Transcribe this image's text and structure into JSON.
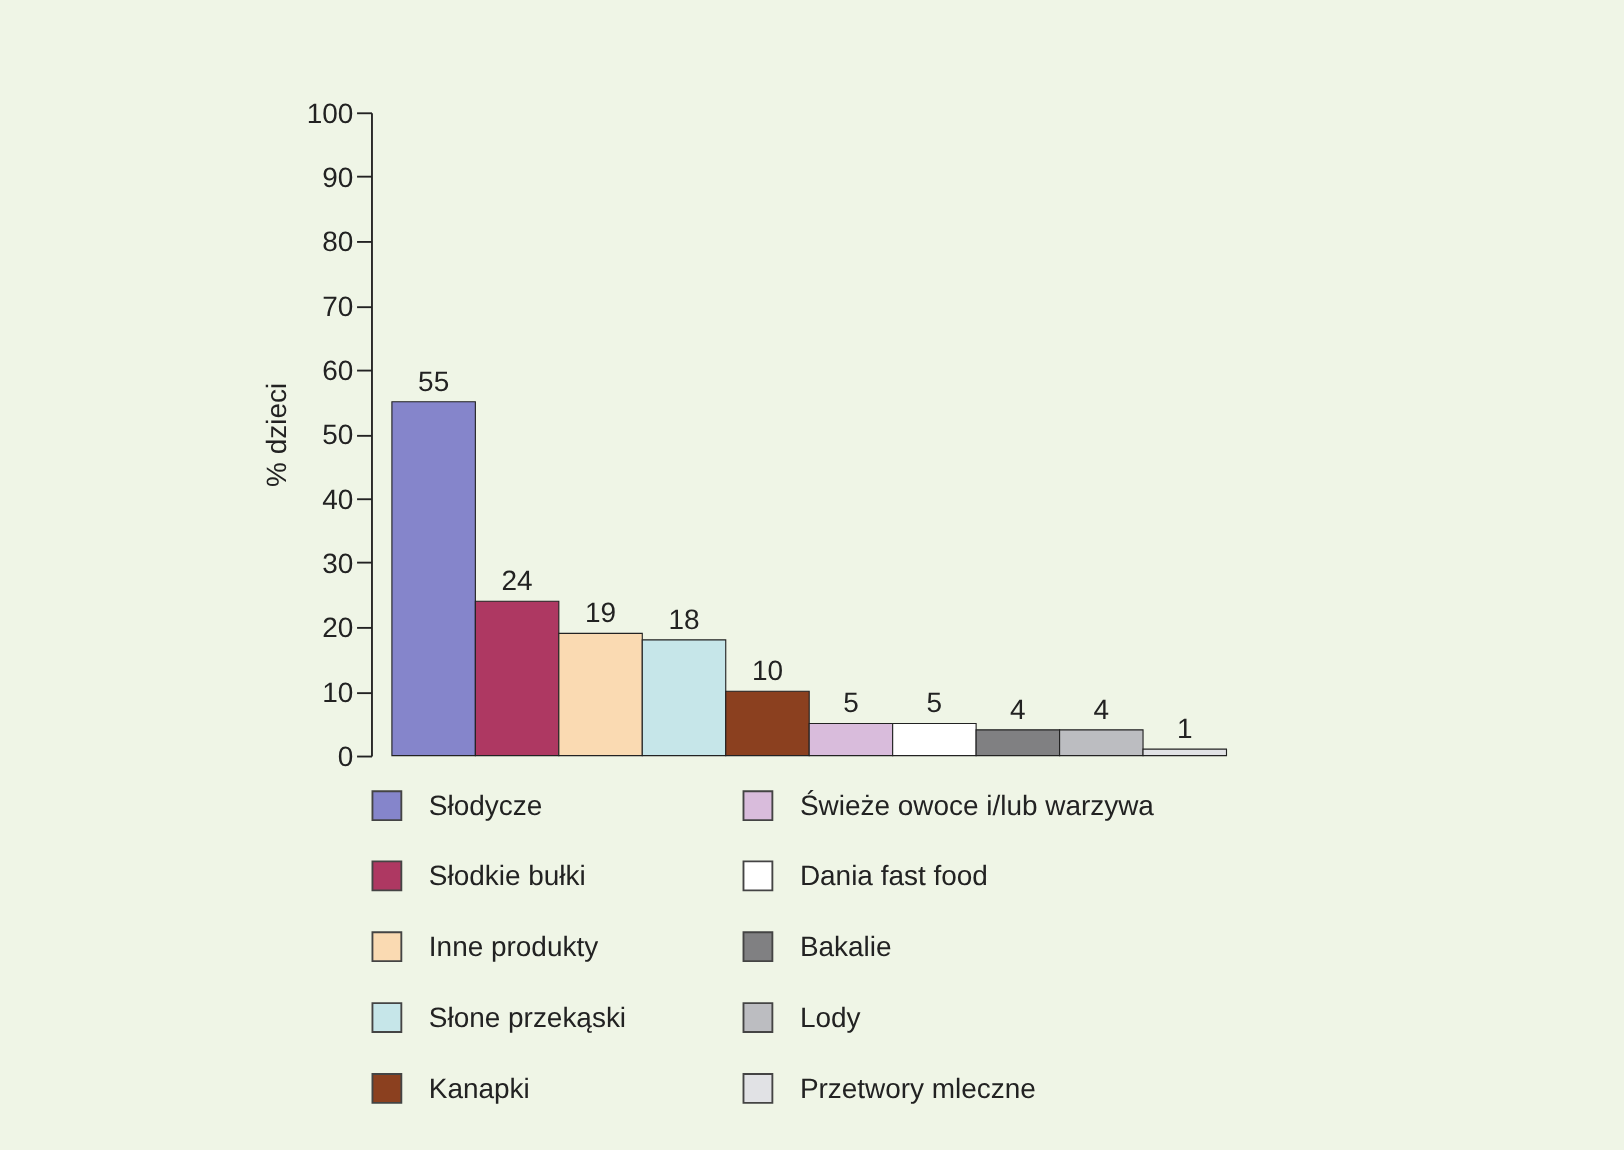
{
  "chart_data": {
    "type": "bar",
    "ylabel": "% dzieci",
    "categories": [
      null,
      null,
      null,
      null,
      null,
      null,
      null,
      null,
      null,
      null
    ],
    "series": [
      {
        "name": "Słodycze",
        "color": "#8585cb",
        "values": [
          55,
          null,
          null,
          null,
          null,
          null,
          null,
          null,
          null,
          null
        ]
      },
      {
        "name": "Słodkie bułki",
        "color": "#ae3862",
        "values": [
          null,
          24,
          null,
          null,
          null,
          null,
          null,
          null,
          null,
          null
        ]
      },
      {
        "name": "Inne produkty",
        "color": "#fadab2",
        "values": [
          null,
          null,
          19,
          null,
          null,
          null,
          null,
          null,
          null,
          null
        ]
      },
      {
        "name": "Słone przekąski",
        "color": "#c6e6e9",
        "values": [
          null,
          null,
          null,
          18,
          null,
          null,
          null,
          null,
          null,
          null
        ]
      },
      {
        "name": "Kanapki",
        "color": "#8b401f",
        "values": [
          null,
          null,
          null,
          null,
          10,
          null,
          null,
          null,
          null,
          null
        ]
      },
      {
        "name": "Świeże owoce i/lub warzywa",
        "color": "#d9bcdc",
        "values": [
          null,
          null,
          null,
          null,
          null,
          5,
          null,
          null,
          null,
          null
        ]
      },
      {
        "name": "Dania fast food",
        "color": "#ffffff",
        "values": [
          null,
          null,
          null,
          null,
          null,
          null,
          5,
          null,
          null,
          null
        ]
      },
      {
        "name": "Bakalie",
        "color": "#808082",
        "values": [
          null,
          null,
          null,
          null,
          null,
          null,
          null,
          4,
          null,
          null
        ]
      },
      {
        "name": "Lody",
        "color": "#bcbdc1",
        "values": [
          null,
          null,
          null,
          null,
          null,
          null,
          null,
          null,
          4,
          null
        ]
      },
      {
        "name": "Przetwory mleczne",
        "color": "#e1e2e5",
        "values": [
          null,
          null,
          null,
          null,
          null,
          null,
          null,
          null,
          null,
          1
        ]
      }
    ],
    "ylim": [
      0,
      100
    ],
    "yticks": [
      0,
      10,
      20,
      30,
      40,
      50,
      60,
      70,
      80,
      90,
      100
    ],
    "stacked": true,
    "data_labels": true,
    "legend": "bottom",
    "tick_labels": "y",
    "grid": false
  }
}
